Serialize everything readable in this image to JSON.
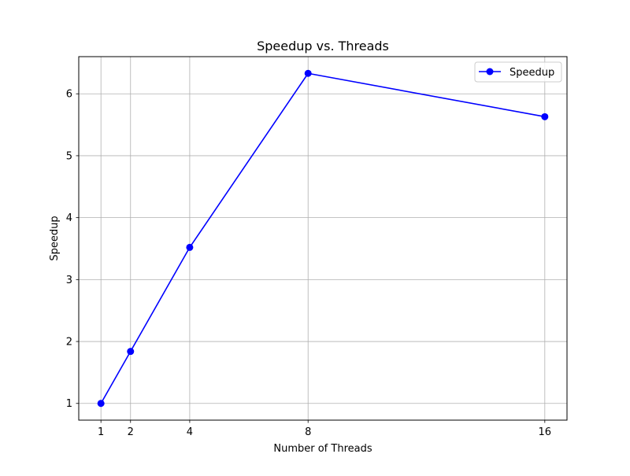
{
  "chart_data": {
    "type": "line",
    "title": "Speedup vs. Threads",
    "xlabel": "Number of Threads",
    "ylabel": "Speedup",
    "x": [
      1,
      2,
      4,
      8,
      16
    ],
    "series": [
      {
        "name": "Speedup",
        "values": [
          1.0,
          1.84,
          3.52,
          6.33,
          5.63
        ],
        "color": "#0000ff",
        "marker": "circle"
      }
    ],
    "xticks": [
      1,
      2,
      4,
      8,
      16
    ],
    "yticks": [
      1,
      2,
      3,
      4,
      5,
      6
    ],
    "xlim": [
      0.25,
      16.75
    ],
    "ylim": [
      0.73,
      6.6
    ],
    "grid": true,
    "legend_position": "top-right"
  },
  "style": {
    "grid_color": "#b0b0b0",
    "axis_color": "#000000"
  }
}
